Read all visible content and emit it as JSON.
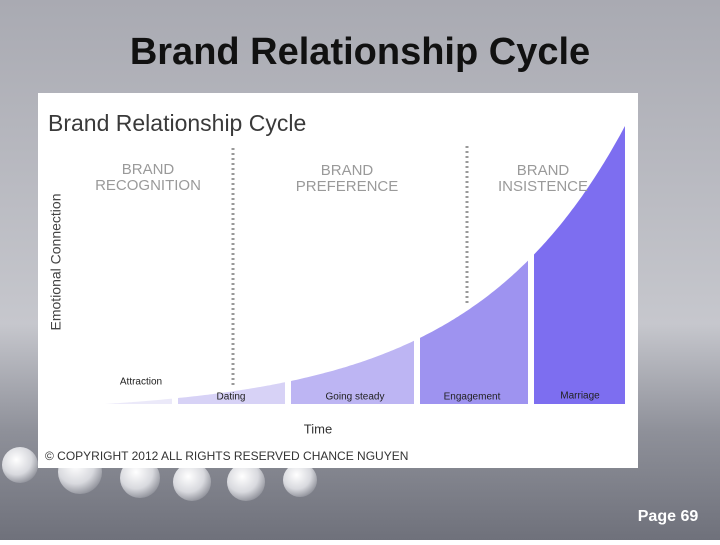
{
  "slide": {
    "title": "Brand Relationship Cycle",
    "page": "Page 69"
  },
  "figure": {
    "title": "Brand Relationship Cycle",
    "y_axis": "Emotional Connection",
    "x_axis": "Time",
    "phases": [
      [
        "BRAND",
        "RECOGNITION"
      ],
      [
        "BRAND",
        "PREFERENCE"
      ],
      [
        "BRAND",
        "INSISTENCE"
      ]
    ],
    "stages": [
      "Attraction",
      "Dating",
      "Going steady",
      "Engagement",
      "Marriage"
    ],
    "copyright": "© COPYRIGHT 2012 ALL RIGHTS RESERVED CHANCE NGUYEN"
  }
}
